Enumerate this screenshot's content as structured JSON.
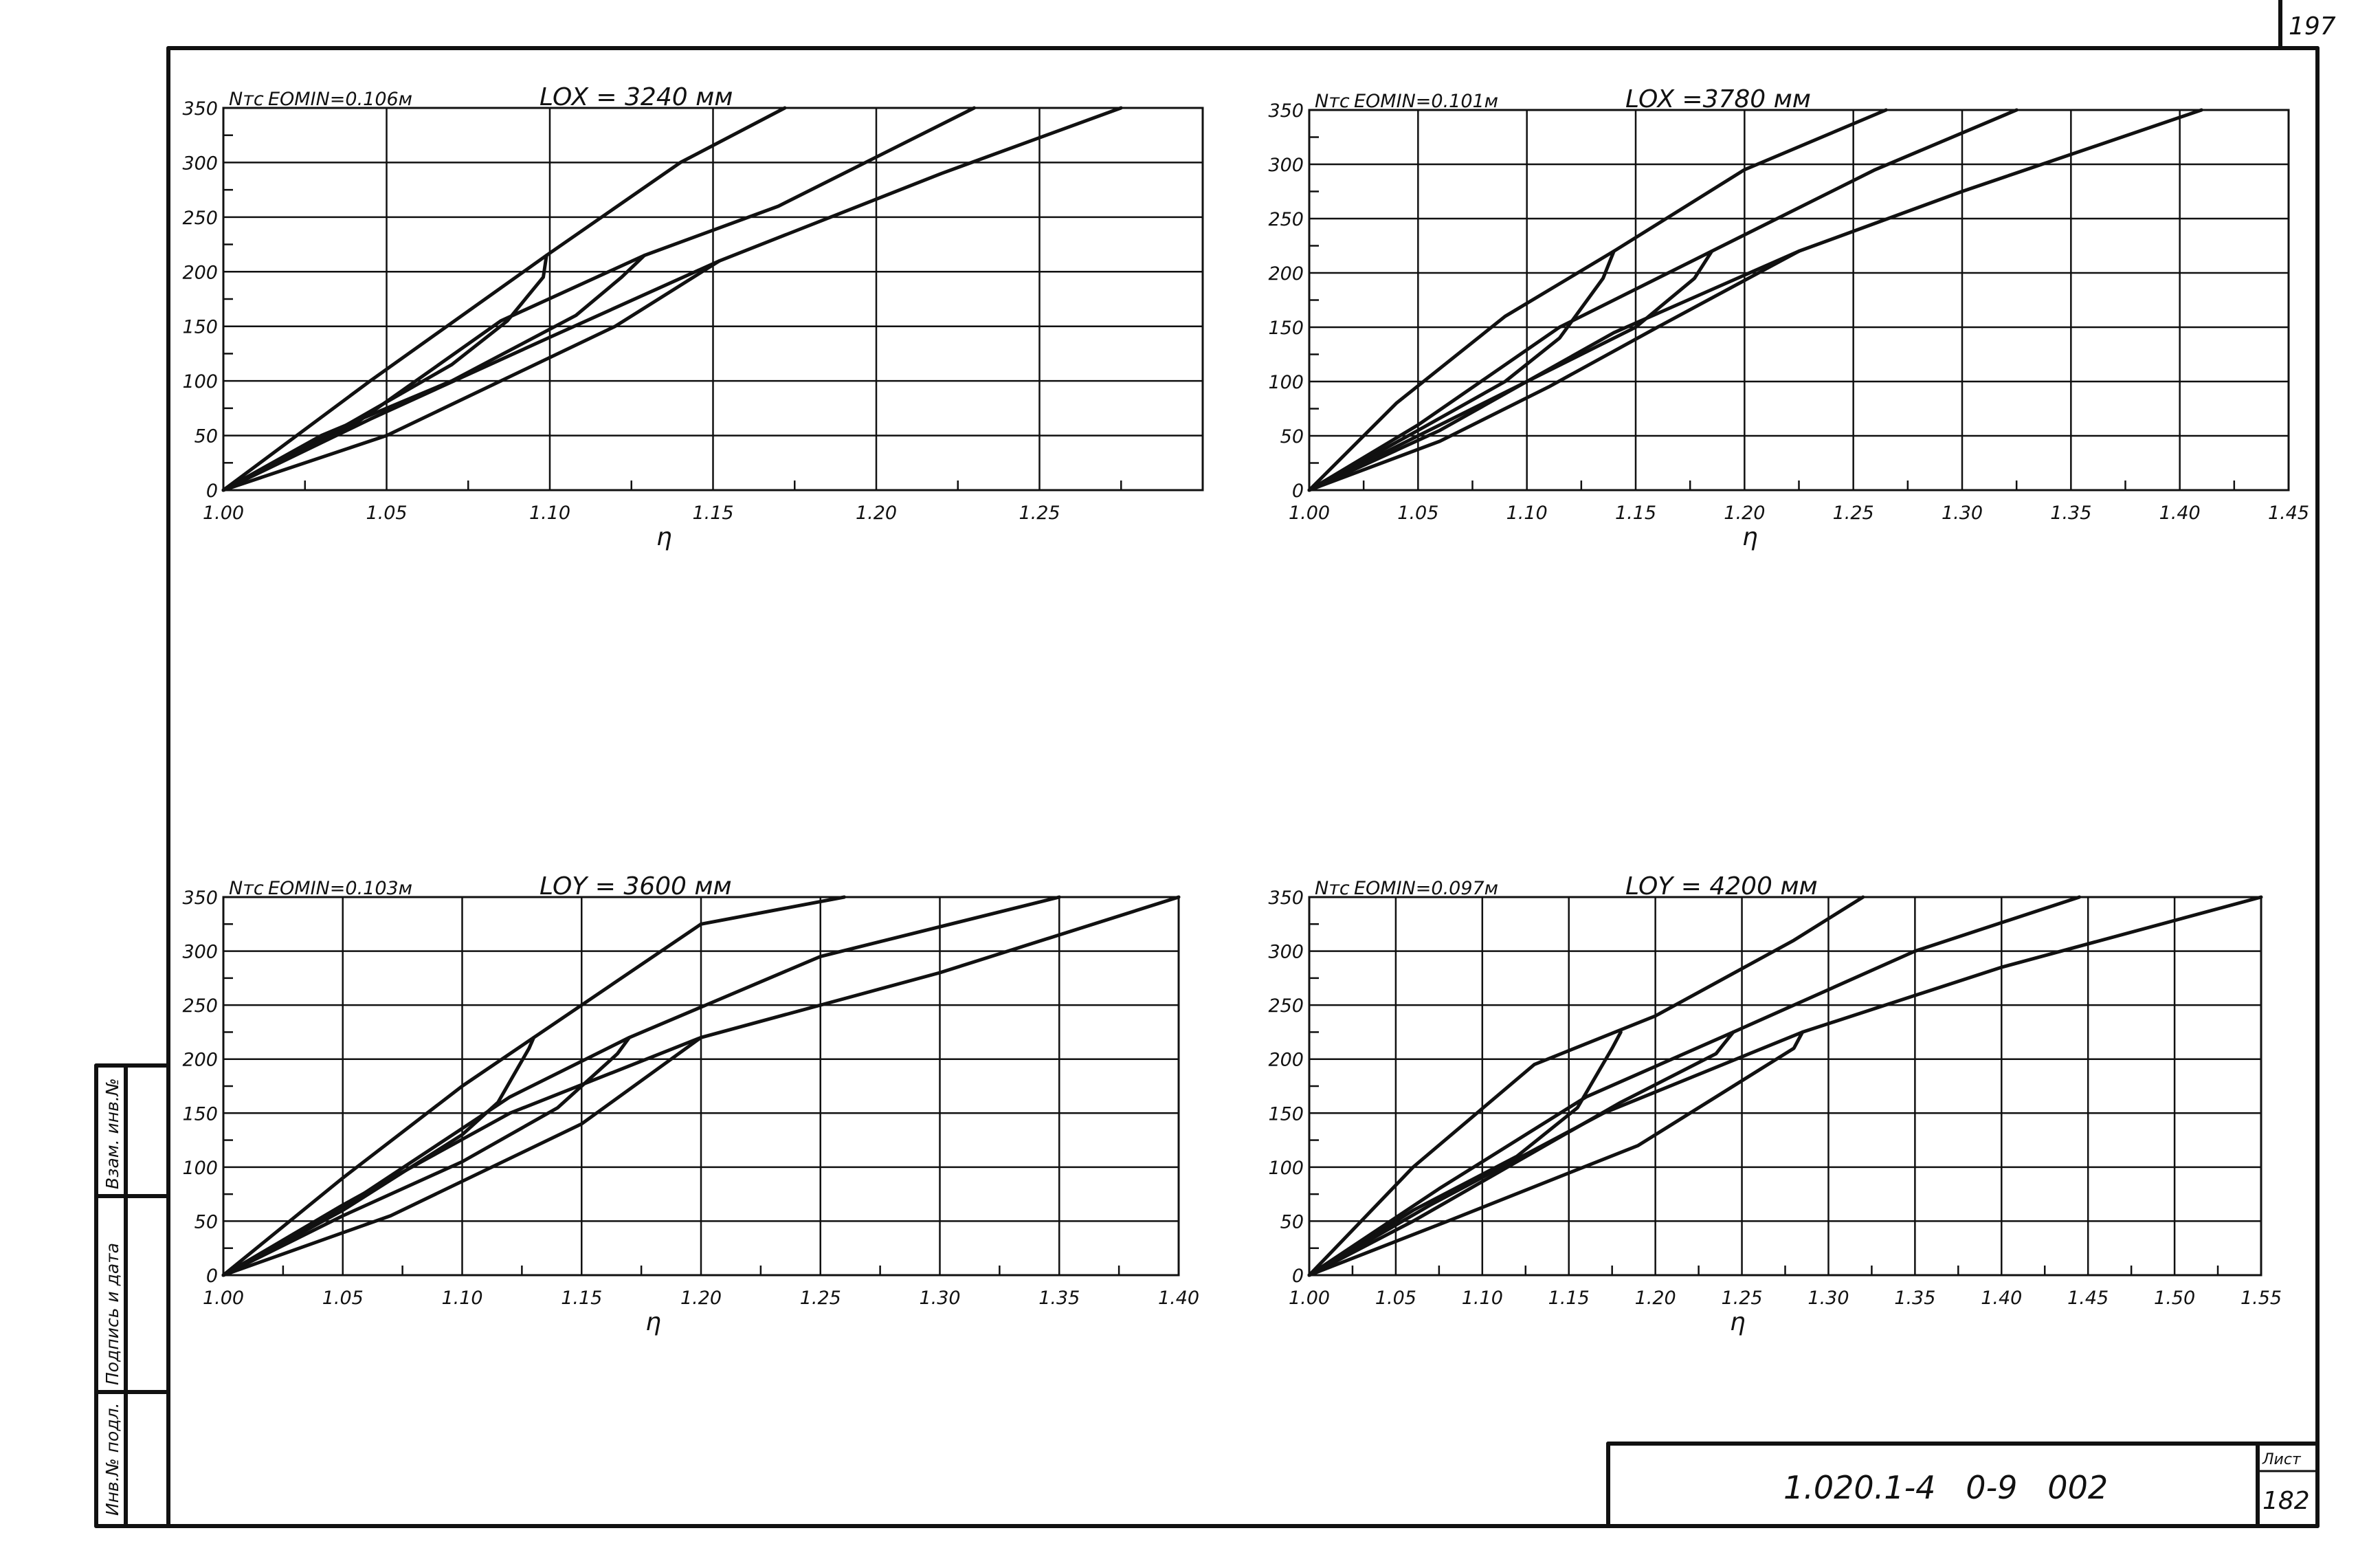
{
  "sheet": {
    "corner_number": "197",
    "code": "1.020.1-4   0-9   002",
    "list_label": "Лист",
    "list_number": "182",
    "side_labels": [
      "Инв.№ подл.",
      "Подпись и дата",
      "Взам. инв.№"
    ]
  },
  "colors": {
    "ink": "#111111",
    "paper": "#ffffff"
  },
  "chart_data": [
    {
      "type": "line",
      "y_label": "Nтс",
      "x_label": "η",
      "header_left": "EOMIN=0.106м",
      "header_right": "LOX = 3240 мм",
      "xlim": [
        1.0,
        1.3
      ],
      "ylim": [
        0,
        350
      ],
      "x_ticks": [
        "1.00",
        "1.05",
        "1.10",
        "1.15",
        "1.20",
        "1.25"
      ],
      "y_ticks": [
        "0",
        "50",
        "100",
        "150",
        "200",
        "250",
        "300",
        "350"
      ],
      "series": [
        {
          "x": [
            1.0,
            1.045,
            1.099,
            1.14,
            1.172
          ],
          "y": [
            0,
            100,
            215,
            300,
            350
          ]
        },
        {
          "x": [
            1.0,
            1.035,
            1.07,
            1.087,
            1.098,
            1.099
          ],
          "y": [
            0,
            55,
            115,
            155,
            195,
            215
          ]
        },
        {
          "x": [
            1.0,
            1.04,
            1.085,
            1.129,
            1.17,
            1.23
          ],
          "y": [
            0,
            60,
            155,
            215,
            260,
            350
          ]
        },
        {
          "x": [
            1.0,
            1.03,
            1.07,
            1.108,
            1.122,
            1.129
          ],
          "y": [
            0,
            50,
            100,
            160,
            195,
            215
          ]
        },
        {
          "x": [
            1.0,
            1.045,
            1.1,
            1.152,
            1.22,
            1.275
          ],
          "y": [
            0,
            65,
            140,
            210,
            290,
            350
          ]
        },
        {
          "x": [
            1.0,
            1.05,
            1.12,
            1.152
          ],
          "y": [
            0,
            50,
            150,
            210
          ]
        }
      ]
    },
    {
      "type": "line",
      "y_label": "Nтс",
      "x_label": "η",
      "header_left": "EOMIN=0.101м",
      "header_right": "LOX =3780 мм",
      "xlim": [
        1.0,
        1.45
      ],
      "ylim": [
        0,
        350
      ],
      "x_ticks": [
        "1.00",
        "1.05",
        "1.10",
        "1.15",
        "1.20",
        "1.25",
        "1.30",
        "1.35",
        "1.40",
        "1.45"
      ],
      "y_ticks": [
        "0",
        "50",
        "100",
        "150",
        "200",
        "250",
        "300",
        "350"
      ],
      "series": [
        {
          "x": [
            1.0,
            1.04,
            1.09,
            1.14,
            1.2,
            1.265
          ],
          "y": [
            0,
            80,
            160,
            220,
            295,
            350
          ]
        },
        {
          "x": [
            1.0,
            1.05,
            1.09,
            1.115,
            1.135,
            1.14
          ],
          "y": [
            0,
            55,
            100,
            140,
            195,
            220
          ]
        },
        {
          "x": [
            1.0,
            1.05,
            1.115,
            1.185,
            1.26,
            1.325
          ],
          "y": [
            0,
            60,
            150,
            220,
            295,
            350
          ]
        },
        {
          "x": [
            1.0,
            1.05,
            1.1,
            1.15,
            1.177,
            1.185
          ],
          "y": [
            0,
            50,
            100,
            150,
            195,
            220
          ]
        },
        {
          "x": [
            1.0,
            1.06,
            1.14,
            1.225,
            1.3,
            1.41
          ],
          "y": [
            0,
            55,
            145,
            220,
            275,
            350
          ]
        },
        {
          "x": [
            1.0,
            1.06,
            1.11,
            1.16,
            1.225
          ],
          "y": [
            0,
            45,
            95,
            150,
            220
          ]
        }
      ]
    },
    {
      "type": "line",
      "y_label": "Nтс",
      "x_label": "η",
      "header_left": "EOMIN=0.103м",
      "header_right": "LOY = 3600 мм",
      "xlim": [
        1.0,
        1.4
      ],
      "ylim": [
        0,
        350
      ],
      "x_ticks": [
        "1.00",
        "1.05",
        "1.10",
        "1.15",
        "1.20",
        "1.25",
        "1.30",
        "1.35",
        "1.40"
      ],
      "y_ticks": [
        "0",
        "50",
        "100",
        "150",
        "200",
        "250",
        "300",
        "350"
      ],
      "series": [
        {
          "x": [
            1.0,
            1.05,
            1.1,
            1.13,
            1.2,
            1.26
          ],
          "y": [
            0,
            90,
            175,
            220,
            325,
            350
          ]
        },
        {
          "x": [
            1.0,
            1.05,
            1.1,
            1.115,
            1.128,
            1.13
          ],
          "y": [
            0,
            60,
            130,
            160,
            210,
            220
          ]
        },
        {
          "x": [
            1.0,
            1.055,
            1.12,
            1.17,
            1.25,
            1.35
          ],
          "y": [
            0,
            70,
            165,
            220,
            295,
            350
          ]
        },
        {
          "x": [
            1.0,
            1.05,
            1.1,
            1.14,
            1.165,
            1.17
          ],
          "y": [
            0,
            55,
            105,
            155,
            205,
            220
          ]
        },
        {
          "x": [
            1.0,
            1.05,
            1.12,
            1.2,
            1.3,
            1.4
          ],
          "y": [
            0,
            65,
            150,
            220,
            280,
            350
          ]
        },
        {
          "x": [
            1.0,
            1.07,
            1.15,
            1.2
          ],
          "y": [
            0,
            55,
            140,
            220
          ]
        }
      ]
    },
    {
      "type": "line",
      "y_label": "Nтс",
      "x_label": "η",
      "header_left": "EOMIN=0.097м",
      "header_right": "LOY = 4200 мм",
      "xlim": [
        1.0,
        1.55
      ],
      "ylim": [
        0,
        350
      ],
      "x_ticks": [
        "1.00",
        "1.05",
        "1.10",
        "1.15",
        "1.20",
        "1.25",
        "1.30",
        "1.35",
        "1.40",
        "1.45",
        "1.50",
        "1.55"
      ],
      "y_ticks": [
        "0",
        "50",
        "100",
        "150",
        "200",
        "250",
        "300",
        "350"
      ],
      "series": [
        {
          "x": [
            1.0,
            1.06,
            1.13,
            1.2,
            1.28,
            1.32
          ],
          "y": [
            0,
            100,
            195,
            240,
            310,
            350
          ]
        },
        {
          "x": [
            1.0,
            1.06,
            1.12,
            1.155,
            1.175,
            1.18
          ],
          "y": [
            0,
            60,
            110,
            155,
            210,
            225
          ]
        },
        {
          "x": [
            1.0,
            1.075,
            1.16,
            1.245,
            1.35,
            1.445
          ],
          "y": [
            0,
            80,
            165,
            225,
            300,
            350
          ]
        },
        {
          "x": [
            1.0,
            1.06,
            1.12,
            1.18,
            1.235,
            1.245
          ],
          "y": [
            0,
            50,
            105,
            160,
            205,
            225
          ]
        },
        {
          "x": [
            1.0,
            1.07,
            1.17,
            1.285,
            1.4,
            1.55
          ],
          "y": [
            0,
            65,
            150,
            225,
            285,
            350
          ]
        },
        {
          "x": [
            1.0,
            1.08,
            1.19,
            1.28,
            1.285
          ],
          "y": [
            0,
            50,
            120,
            210,
            225
          ]
        }
      ]
    }
  ]
}
